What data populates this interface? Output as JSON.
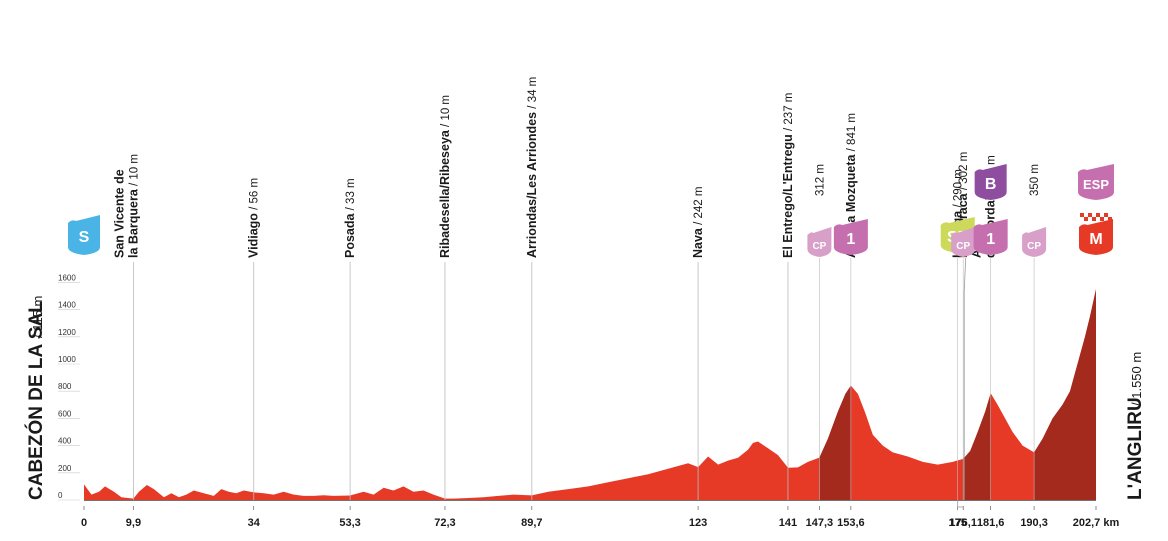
{
  "chart_data": {
    "type": "area",
    "title": "",
    "x_unit": "km",
    "ylim": [
      0,
      1700
    ],
    "y_ticks": [
      "0",
      "200",
      "400",
      "600",
      "800",
      "1000",
      "1200",
      "1400",
      "1600"
    ],
    "start": {
      "name": "CABEZÓN DE LA SAL",
      "alt": "/ 115 m"
    },
    "finish": {
      "name": "L'ANGLIRU",
      "alt": "/ 1.550 m"
    },
    "x_ticks": [
      {
        "km": 0,
        "label": "0"
      },
      {
        "km": 9.9,
        "label": "9,9"
      },
      {
        "km": 34,
        "label": "34"
      },
      {
        "km": 53.3,
        "label": "53,3"
      },
      {
        "km": 72.3,
        "label": "72,3"
      },
      {
        "km": 89.7,
        "label": "89,7"
      },
      {
        "km": 123,
        "label": "123"
      },
      {
        "km": 141,
        "label": "141"
      },
      {
        "km": 147.3,
        "label": "147,3"
      },
      {
        "km": 153.6,
        "label": "153,6"
      },
      {
        "km": 175,
        "label": "175"
      },
      {
        "km": 176.1,
        "label": "176,1"
      },
      {
        "km": 181.6,
        "label": "181,6"
      },
      {
        "km": 190.3,
        "label": "190,3"
      },
      {
        "km": 202.7,
        "label": "202,7 km"
      }
    ],
    "profile": {
      "km": [
        0,
        1.5,
        3,
        4.2,
        6,
        7.5,
        9.9,
        11,
        12.6,
        14,
        16,
        17.5,
        19,
        20.5,
        22,
        24,
        26,
        27.5,
        29,
        30.5,
        32,
        34,
        36,
        38,
        40,
        42,
        44,
        46,
        48,
        50,
        53.3,
        56,
        58,
        60,
        62,
        64,
        66,
        68,
        70,
        72.3,
        74,
        77,
        80,
        83,
        86,
        89.7,
        93,
        97,
        101,
        105,
        109,
        113,
        116,
        119,
        121,
        123,
        125,
        127,
        129,
        131,
        133,
        134,
        135,
        137,
        139,
        141,
        143,
        145,
        147.3,
        149,
        151,
        152.5,
        153.6,
        155,
        156.5,
        158,
        160,
        162,
        165,
        168,
        171,
        174,
        176.1,
        177.5,
        179,
        180.5,
        181.6,
        183,
        184.5,
        186,
        188,
        190.3,
        192,
        194,
        196,
        197.5,
        199,
        200.5,
        201.5,
        202.7
      ],
      "alt": [
        115,
        40,
        60,
        100,
        60,
        20,
        10,
        60,
        110,
        80,
        20,
        50,
        20,
        40,
        70,
        50,
        30,
        80,
        60,
        50,
        70,
        56,
        50,
        40,
        60,
        40,
        30,
        30,
        35,
        30,
        33,
        60,
        40,
        90,
        70,
        100,
        60,
        70,
        40,
        10,
        10,
        15,
        20,
        30,
        40,
        34,
        60,
        80,
        100,
        130,
        160,
        190,
        220,
        250,
        270,
        242,
        320,
        260,
        290,
        310,
        370,
        420,
        430,
        380,
        330,
        237,
        240,
        280,
        312,
        450,
        650,
        780,
        841,
        780,
        640,
        480,
        400,
        350,
        320,
        280,
        260,
        280,
        302,
        360,
        500,
        650,
        785,
        700,
        600,
        500,
        400,
        350,
        450,
        600,
        700,
        800,
        1000,
        1200,
        1350,
        1550
      ]
    },
    "places": [
      {
        "km": 9.9,
        "name": "San Vicente de\nla Barquera",
        "alt": "/ 10 m"
      },
      {
        "km": 34,
        "name": "Vidiago",
        "alt": "/ 56 m"
      },
      {
        "km": 53.3,
        "name": "Posada",
        "alt": "/ 33 m"
      },
      {
        "km": 72.3,
        "name": "Ribadesella/Ribeseya",
        "alt": "/ 10 m"
      },
      {
        "km": 89.7,
        "name": "Arriondas/Les Arriondes",
        "alt": "/ 34 m"
      },
      {
        "km": 123,
        "name": "Nava",
        "alt": "/ 242 m"
      },
      {
        "km": 141,
        "name": "El Entrego/L'Entregu",
        "alt": "/ 237 m"
      },
      {
        "km": 147.3,
        "name": "",
        "alt": "312 m"
      },
      {
        "km": 153.6,
        "name": "Alto La Mozqueta",
        "alt": "/ 841 m"
      },
      {
        "km": 175,
        "name": "La Vega",
        "alt": "/ 290 m"
      },
      {
        "km": 176.1,
        "name": "La Barraca",
        "alt": "/ 302 m"
      },
      {
        "km": 181.6,
        "name": "Alto\ndel Cordal",
        "alt": "/ 785 m"
      },
      {
        "km": 190.3,
        "name": "",
        "alt": "350 m"
      }
    ],
    "badges": [
      {
        "km": 0,
        "text": "S",
        "type": "start",
        "color": "#4bb4e6"
      },
      {
        "km": 147.3,
        "text": "CP",
        "type": "cp",
        "color": "#d89fc9"
      },
      {
        "km": 153.6,
        "text": "1",
        "type": "climb",
        "color": "#c56fae"
      },
      {
        "km": 175,
        "text": "SP",
        "type": "sprint",
        "color": "#ccd95a"
      },
      {
        "km": 176.1,
        "text": "CP",
        "type": "cp",
        "color": "#d89fc9"
      },
      {
        "km": 181.6,
        "text": "B",
        "type": "bonus",
        "color": "#8e4d9e"
      },
      {
        "km": 181.6,
        "text": "1",
        "type": "climb",
        "color": "#c56fae"
      },
      {
        "km": 190.3,
        "text": "CP",
        "type": "cp",
        "color": "#d89fc9"
      },
      {
        "km": 202.7,
        "text": "ESP",
        "type": "special",
        "color": "#c56fae"
      },
      {
        "km": 202.7,
        "text": "M",
        "type": "finish",
        "color": "#e63a27"
      }
    ],
    "colors": {
      "fill": "#e63a27",
      "climb_fill": "#a52a1e",
      "grid": "#cccccc",
      "place_line": "#bbbbbb"
    }
  }
}
